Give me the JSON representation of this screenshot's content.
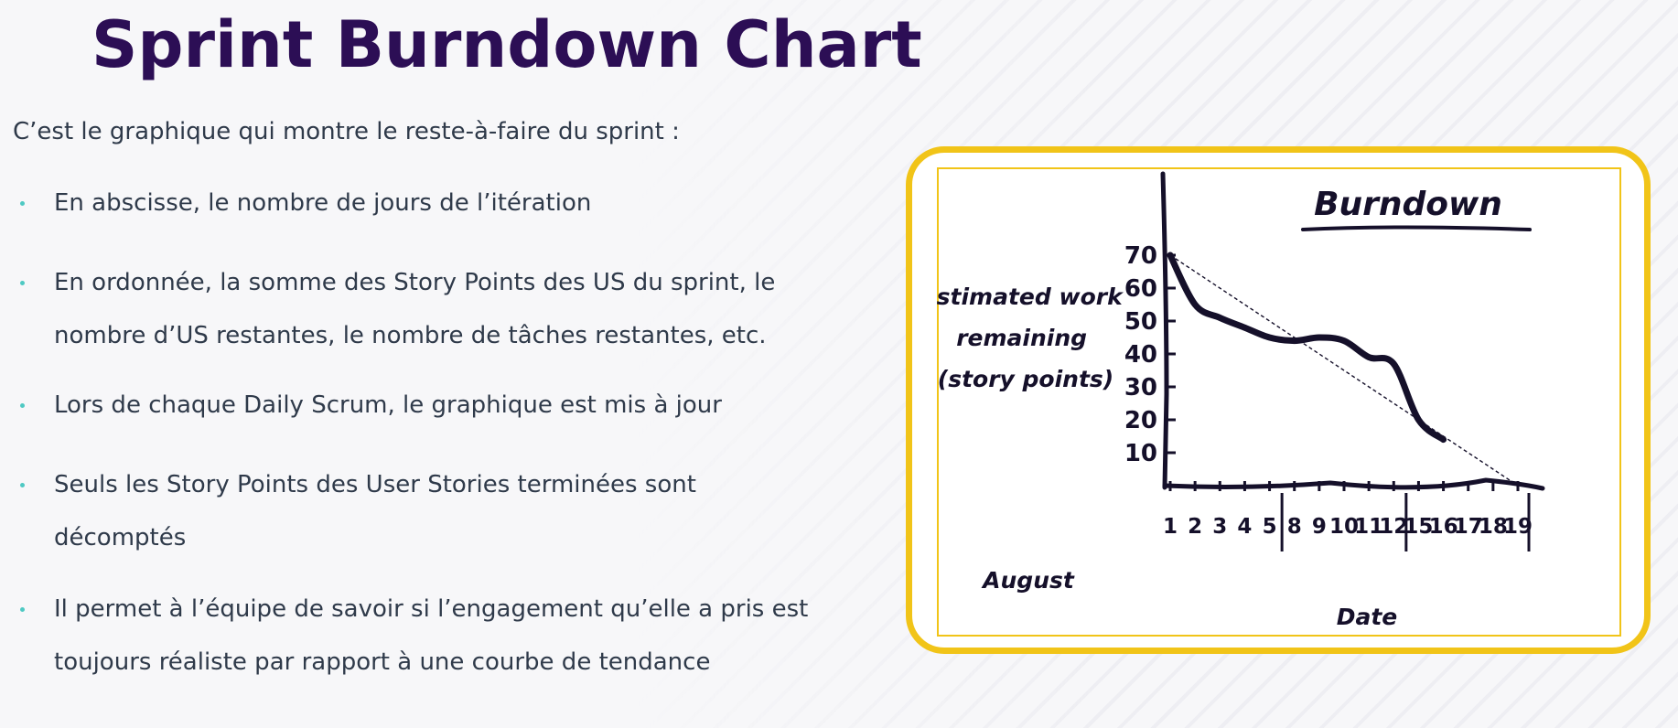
{
  "slide": {
    "title": "Sprint Burndown Chart",
    "intro": "C’est le graphique qui montre le reste-à-faire du sprint :",
    "bullets": [
      {
        "text": "En abscisse, le nombre de jours de l’itération"
      },
      {
        "text": "En ordonnée, la somme des Story Points des US du sprint, le\nnombre d’US restantes, le nombre de tâches restantes, etc."
      },
      {
        "text": "Lors de chaque Daily Scrum, le graphique est mis à jour"
      },
      {
        "text": "Seuls les Story Points des User Stories terminées sont\ndécomptés"
      },
      {
        "text": "Il permet à l’équipe de savoir si l’engagement qu’elle a pris est\ntoujours réaliste par rapport à une courbe de tendance"
      }
    ]
  },
  "colors": {
    "title": "#2c0e55",
    "body_text": "#2f3a4a",
    "bullet": "#4fc9c3",
    "card_border": "#f1c418",
    "ink": "#15102a",
    "background": "#f7f7f9"
  },
  "chart_data": {
    "type": "line",
    "title": "Burndown",
    "ylabel": "Estimated work remaining (story points)",
    "xlabel": "Date",
    "x_prefix_label": "August",
    "x": [
      "1",
      "2",
      "3",
      "4",
      "5",
      "8",
      "9",
      "10",
      "11",
      "12",
      "15",
      "16",
      "17",
      "18",
      "19"
    ],
    "week_separators_after": [
      "5",
      "12"
    ],
    "y_ticks": [
      10,
      20,
      30,
      40,
      50,
      60,
      70
    ],
    "ylim": [
      0,
      80
    ],
    "series": [
      {
        "values": [
          70,
          55,
          51,
          48,
          45,
          44,
          45,
          44,
          39,
          37,
          20,
          14,
          null,
          null,
          null
        ]
      },
      {
        "values": [
          70,
          65,
          60,
          55,
          50,
          45,
          40,
          35,
          30,
          25,
          20,
          15,
          10,
          5,
          0
        ]
      }
    ],
    "grid": false
  }
}
